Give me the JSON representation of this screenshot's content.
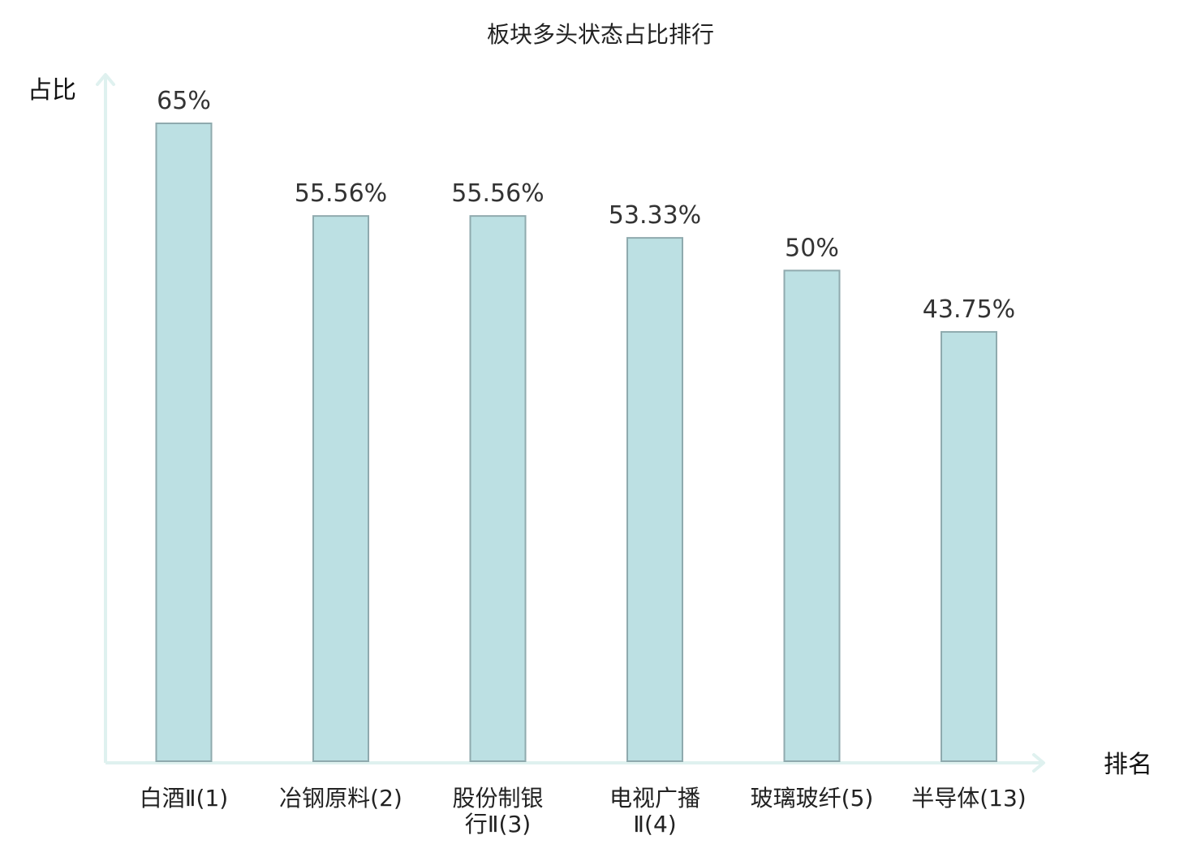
{
  "chart_data": {
    "type": "bar",
    "title": "板块多头状态占比排行",
    "ylabel": "占比",
    "xlabel": "排名",
    "ylim": [
      0,
      65
    ],
    "grid": false,
    "categories": [
      [
        "白酒Ⅱ(1)"
      ],
      [
        "冶钢原料(2)"
      ],
      [
        "股份制银",
        "行Ⅱ(3)"
      ],
      [
        "电视广播",
        "Ⅱ(4)"
      ],
      [
        "玻璃玻纤(5)"
      ],
      [
        "半导体(13)"
      ]
    ],
    "values": [
      65,
      55.56,
      55.56,
      53.33,
      50,
      43.75
    ],
    "value_labels": [
      "65%",
      "55.56%",
      "55.56%",
      "53.33%",
      "50%",
      "43.75%"
    ],
    "highlight_index": 5
  },
  "colors": {
    "bar_fill": "#bce0e3",
    "bar_stroke": "#8faaae",
    "axis": "#dff1ef",
    "highlight_text": "#e02020",
    "text": "#222222"
  }
}
